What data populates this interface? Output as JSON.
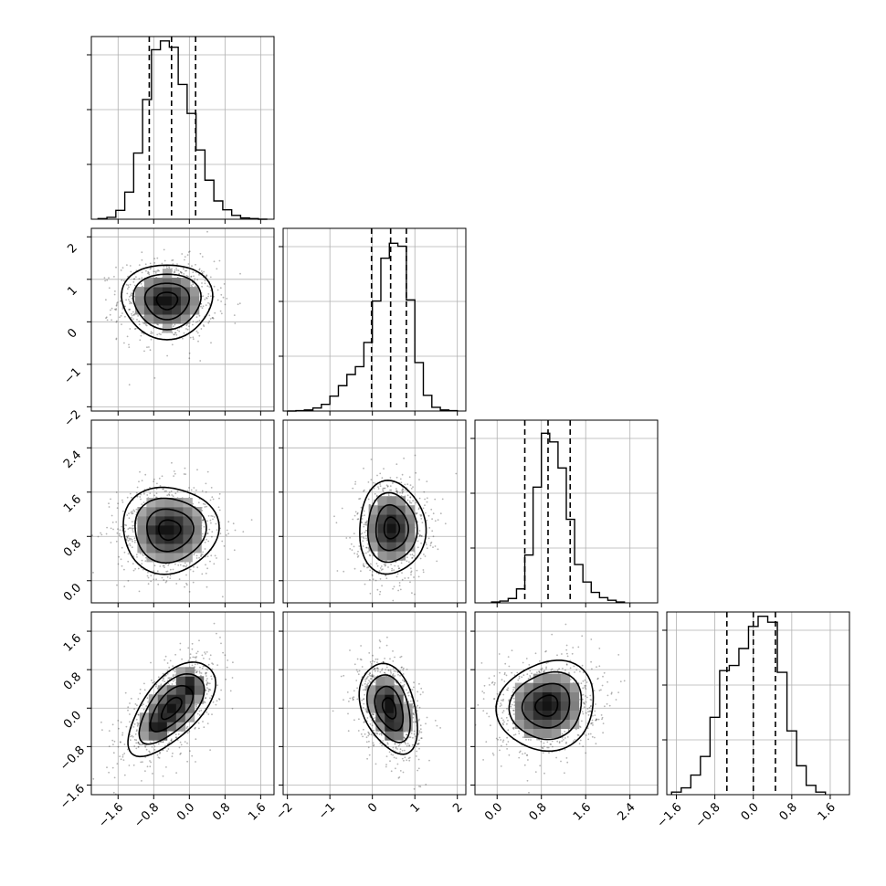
{
  "chart_data": {
    "type": "corner",
    "grid": true,
    "parameters": [
      {
        "range": [
          -2.2,
          1.9
        ],
        "ticks": [
          -1.6,
          -0.8,
          0.0,
          0.8,
          1.6
        ],
        "tick_labels": [
          "−1.6",
          "−0.8",
          "0.0",
          "0.8",
          "1.6"
        ],
        "quantiles": [
          -0.9,
          -0.4,
          0.14
        ],
        "bin_edges": [
          -2.05,
          -1.85,
          -1.65,
          -1.45,
          -1.25,
          -1.05,
          -0.85,
          -0.65,
          -0.45,
          -0.25,
          -0.05,
          0.15,
          0.35,
          0.55,
          0.75,
          0.95,
          1.15,
          1.35,
          1.55,
          1.75
        ],
        "counts": [
          1,
          3,
          14,
          43,
          105,
          190,
          269,
          283,
          273,
          214,
          168,
          110,
          62,
          29,
          15,
          6,
          2,
          1,
          0
        ],
        "hist_ymax": 290
      },
      {
        "range": [
          -2.1,
          2.2
        ],
        "ticks": [
          -2,
          -1,
          0,
          1,
          2
        ],
        "tick_labels": [
          "−2",
          "−1",
          "0",
          "1",
          "2"
        ],
        "quantiles": [
          -0.02,
          0.43,
          0.8
        ],
        "bin_edges": [
          -2.0,
          -1.8,
          -1.6,
          -1.4,
          -1.2,
          -1.0,
          -0.8,
          -0.6,
          -0.4,
          -0.2,
          0.0,
          0.2,
          0.4,
          0.6,
          0.8,
          1.0,
          1.2,
          1.4,
          1.6,
          1.8,
          2.0
        ],
        "counts": [
          0,
          1,
          3,
          8,
          18,
          40,
          68,
          98,
          119,
          184,
          295,
          410,
          450,
          442,
          298,
          130,
          42,
          10,
          3,
          1
        ],
        "hist_ymax": 490
      },
      {
        "range": [
          -0.4,
          2.9
        ],
        "ticks": [
          0.0,
          0.8,
          1.6,
          2.4
        ],
        "tick_labels": [
          "0.0",
          "0.8",
          "1.6",
          "2.4"
        ],
        "quantiles": [
          0.5,
          0.92,
          1.32
        ],
        "bin_edges": [
          -0.1,
          0.05,
          0.2,
          0.35,
          0.5,
          0.65,
          0.8,
          0.95,
          1.1,
          1.25,
          1.4,
          1.55,
          1.7,
          1.85,
          2.0,
          2.15,
          2.3
        ],
        "counts": [
          1,
          2,
          5,
          16,
          55,
          133,
          195,
          185,
          155,
          96,
          44,
          24,
          12,
          6,
          3,
          1
        ],
        "hist_ymax": 210
      },
      {
        "range": [
          -1.8,
          2.0
        ],
        "ticks": [
          -1.6,
          -0.8,
          0.0,
          0.8,
          1.6
        ],
        "tick_labels": [
          "−1.6",
          "−0.8",
          "0.0",
          "0.8",
          "1.6"
        ],
        "quantiles": [
          -0.55,
          0.0,
          0.46
        ],
        "bin_edges": [
          -1.7,
          -1.5,
          -1.3,
          -1.1,
          -0.9,
          -0.7,
          -0.5,
          -0.3,
          -0.1,
          0.1,
          0.3,
          0.5,
          0.7,
          0.9,
          1.1,
          1.3,
          1.5
        ],
        "counts": [
          3,
          8,
          23,
          45,
          91,
          146,
          152,
          172,
          198,
          210,
          203,
          144,
          75,
          34,
          11,
          3
        ],
        "hist_ymax": 215
      }
    ],
    "pairs": [
      {
        "x_param": 0,
        "y_param": 1,
        "center": [
          -0.5,
          0.5
        ],
        "sd": [
          0.52,
          0.45
        ],
        "rho": 0.0,
        "peaks": [
          [
            -0.7,
            0.5
          ]
        ],
        "contour_scales": [
          0.45,
          0.95,
          1.45,
          1.95
        ]
      },
      {
        "x_param": 0,
        "y_param": 2,
        "center": [
          -0.45,
          0.92
        ],
        "sd": [
          0.55,
          0.4
        ],
        "rho": 0.0,
        "peaks": [
          [
            -0.7,
            0.88
          ]
        ],
        "contour_scales": [
          0.45,
          0.95,
          1.45,
          1.95
        ]
      },
      {
        "x_param": 1,
        "y_param": 2,
        "center": [
          0.45,
          0.95
        ],
        "sd": [
          0.4,
          0.43
        ],
        "rho": 0.0,
        "peaks": [
          [
            0.45,
            0.92
          ]
        ],
        "contour_scales": [
          0.45,
          0.95,
          1.45,
          1.95
        ]
      },
      {
        "x_param": 0,
        "y_param": 3,
        "center": [
          -0.4,
          0.0
        ],
        "sd": [
          0.5,
          0.5
        ],
        "rho": 0.62,
        "peaks": [
          [
            -0.7,
            -0.35
          ],
          [
            -0.02,
            0.45
          ]
        ],
        "contour_scales": [
          0.45,
          0.95,
          1.45,
          1.95
        ]
      },
      {
        "x_param": 1,
        "y_param": 3,
        "center": [
          0.4,
          0.0
        ],
        "sd": [
          0.35,
          0.48
        ],
        "rho": -0.35,
        "peaks": [
          [
            0.35,
            0.2
          ],
          [
            0.5,
            -0.35
          ]
        ],
        "contour_scales": [
          0.45,
          0.95,
          1.45,
          1.95
        ]
      },
      {
        "x_param": 2,
        "y_param": 3,
        "center": [
          0.9,
          0.05
        ],
        "sd": [
          0.45,
          0.48
        ],
        "rho": 0.1,
        "peaks": [
          [
            0.88,
            0.15
          ]
        ],
        "contour_scales": [
          0.45,
          0.95,
          1.45,
          1.95
        ]
      }
    ]
  }
}
